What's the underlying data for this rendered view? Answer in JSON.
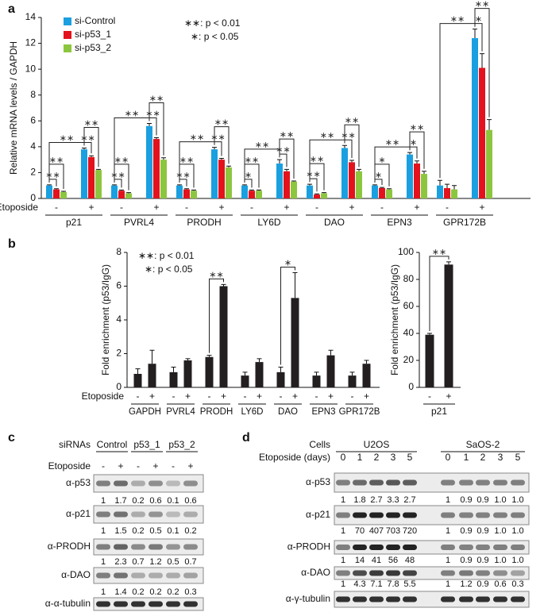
{
  "chart_data": [
    {
      "type": "bar",
      "panel_label": "a",
      "y_label": "Relative mRNA levels / GAPDH",
      "category_label": "Etoposide",
      "groups": [
        "p21",
        "PVRL4",
        "PRODH",
        "LY6D",
        "DAO",
        "EPN3",
        "GPR172B"
      ],
      "categories": [
        "-",
        "+",
        "-",
        "+",
        "-",
        "+",
        "-",
        "+",
        "-",
        "+",
        "-",
        "+",
        "-",
        "+"
      ],
      "series": [
        {
          "name": "si-Control",
          "color": "#1aa0e0",
          "values": [
            1.0,
            3.8,
            1.0,
            5.6,
            1.0,
            3.8,
            1.0,
            2.7,
            1.0,
            3.9,
            1.0,
            3.4,
            1.0,
            12.4
          ],
          "errors": [
            0.05,
            0.1,
            0.05,
            0.2,
            0.05,
            0.15,
            0.05,
            0.3,
            0.1,
            0.2,
            0.05,
            0.15,
            0.4,
            0.7
          ]
        },
        {
          "name": "si-p53_1",
          "color": "#e3121c",
          "values": [
            0.7,
            3.2,
            0.6,
            4.6,
            0.7,
            3.0,
            0.6,
            2.1,
            0.3,
            2.8,
            0.8,
            2.7,
            0.8,
            10.1
          ],
          "errors": [
            0.05,
            0.1,
            0.05,
            0.1,
            0.05,
            0.1,
            0.05,
            0.15,
            0.05,
            0.15,
            0.05,
            0.2,
            0.3,
            1.1
          ]
        },
        {
          "name": "si-p53_2",
          "color": "#8cc63e",
          "values": [
            0.5,
            2.2,
            0.4,
            3.0,
            0.6,
            2.4,
            0.6,
            1.3,
            0.4,
            2.1,
            0.7,
            1.9,
            0.7,
            5.3
          ],
          "errors": [
            0.05,
            0.05,
            0.05,
            0.15,
            0.05,
            0.1,
            0.05,
            0.05,
            0.05,
            0.15,
            0.05,
            0.2,
            0.3,
            0.8
          ]
        }
      ],
      "ylim": [
        0,
        14
      ],
      "yticks": [
        0,
        2,
        4,
        6,
        8,
        10,
        12,
        14
      ],
      "legend_position": "upper left",
      "significance_key": [
        "∗∗: p < 0.01",
        "∗: p < 0.05"
      ],
      "brackets": [
        {
          "label": "∗∗",
          "from": [
            0,
            0
          ],
          "to": [
            1,
            0
          ]
        },
        {
          "label": "∗∗",
          "from": [
            0,
            0
          ],
          "to": [
            2,
            0
          ]
        },
        {
          "label": "∗∗",
          "from": [
            0,
            0
          ],
          "to": [
            0,
            1
          ]
        },
        {
          "label": "∗∗",
          "from": [
            0,
            1
          ],
          "to": [
            1,
            1
          ]
        },
        {
          "label": "∗∗",
          "from": [
            0,
            1
          ],
          "to": [
            2,
            1
          ]
        },
        {
          "label": "∗∗",
          "from": [
            0,
            2
          ],
          "to": [
            1,
            2
          ]
        },
        {
          "label": "∗∗",
          "from": [
            0,
            2
          ],
          "to": [
            2,
            2
          ]
        },
        {
          "label": "∗∗",
          "from": [
            0,
            2
          ],
          "to": [
            0,
            3
          ]
        },
        {
          "label": "∗∗",
          "from": [
            0,
            3
          ],
          "to": [
            1,
            3
          ]
        },
        {
          "label": "∗∗",
          "from": [
            0,
            3
          ],
          "to": [
            2,
            3
          ]
        },
        {
          "label": "∗∗",
          "from": [
            0,
            4
          ],
          "to": [
            1,
            4
          ]
        },
        {
          "label": "∗∗",
          "from": [
            0,
            4
          ],
          "to": [
            2,
            4
          ]
        },
        {
          "label": "∗∗",
          "from": [
            0,
            4
          ],
          "to": [
            0,
            5
          ]
        },
        {
          "label": "∗∗",
          "from": [
            0,
            5
          ],
          "to": [
            1,
            5
          ]
        },
        {
          "label": "∗∗",
          "from": [
            0,
            5
          ],
          "to": [
            2,
            5
          ]
        },
        {
          "label": "∗",
          "from": [
            0,
            6
          ],
          "to": [
            1,
            6
          ]
        },
        {
          "label": "∗∗",
          "from": [
            0,
            6
          ],
          "to": [
            2,
            6
          ]
        },
        {
          "label": "∗∗",
          "from": [
            0,
            6
          ],
          "to": [
            0,
            7
          ]
        },
        {
          "label": "∗∗",
          "from": [
            0,
            7
          ],
          "to": [
            1,
            7
          ]
        },
        {
          "label": "∗∗",
          "from": [
            0,
            7
          ],
          "to": [
            2,
            7
          ]
        },
        {
          "label": "∗∗",
          "from": [
            0,
            8
          ],
          "to": [
            1,
            8
          ]
        },
        {
          "label": "∗∗",
          "from": [
            0,
            8
          ],
          "to": [
            2,
            8
          ]
        },
        {
          "label": "∗∗",
          "from": [
            0,
            8
          ],
          "to": [
            0,
            9
          ]
        },
        {
          "label": "∗∗",
          "from": [
            0,
            9
          ],
          "to": [
            1,
            9
          ]
        },
        {
          "label": "∗∗",
          "from": [
            0,
            9
          ],
          "to": [
            2,
            9
          ]
        },
        {
          "label": "∗",
          "from": [
            0,
            10
          ],
          "to": [
            1,
            10
          ]
        },
        {
          "label": "∗",
          "from": [
            0,
            10
          ],
          "to": [
            2,
            10
          ]
        },
        {
          "label": "∗∗",
          "from": [
            0,
            10
          ],
          "to": [
            0,
            11
          ]
        },
        {
          "label": "∗",
          "from": [
            0,
            11
          ],
          "to": [
            1,
            11
          ]
        },
        {
          "label": "∗∗",
          "from": [
            0,
            11
          ],
          "to": [
            2,
            11
          ]
        },
        {
          "label": "∗∗",
          "from": [
            0,
            12
          ],
          "to": [
            0,
            13
          ]
        },
        {
          "label": "∗",
          "from": [
            0,
            13
          ],
          "to": [
            1,
            13
          ]
        },
        {
          "label": "∗∗",
          "from": [
            0,
            13
          ],
          "to": [
            2,
            13
          ]
        }
      ]
    },
    {
      "type": "bar",
      "panel_label": "b",
      "y_label": "Fold enrichment (p53/IgG)",
      "category_label": "Etoposide",
      "groups": [
        "GAPDH",
        "PVRL4",
        "PRODH",
        "LY6D",
        "DAO",
        "EPN3",
        "GPR172B"
      ],
      "categories": [
        "-",
        "+",
        "-",
        "+",
        "-",
        "+",
        "-",
        "+",
        "-",
        "+",
        "-",
        "+",
        "-",
        "+"
      ],
      "values": [
        0.8,
        1.4,
        0.9,
        1.6,
        1.8,
        6.0,
        0.7,
        1.5,
        0.9,
        5.3,
        0.7,
        1.9,
        0.7,
        1.4
      ],
      "errors": [
        0.3,
        0.8,
        0.3,
        0.1,
        0.1,
        0.1,
        0.2,
        0.2,
        0.3,
        1.5,
        0.2,
        0.3,
        0.2,
        0.2
      ],
      "color": "#231f20",
      "ylim": [
        0,
        8
      ],
      "yticks": [
        0,
        2,
        4,
        6,
        8
      ],
      "significance_key": [
        "∗∗: p < 0.01",
        "∗: p < 0.05"
      ],
      "brackets": [
        {
          "label": "∗∗",
          "from": 4,
          "to": 5
        },
        {
          "label": "∗",
          "from": 8,
          "to": 9
        }
      ]
    },
    {
      "type": "bar",
      "y_label": "Fold enrichment (p53/IgG)",
      "groups": [
        "p21"
      ],
      "categories": [
        "-",
        "+"
      ],
      "values": [
        39,
        91
      ],
      "errors": [
        1,
        2
      ],
      "color": "#231f20",
      "ylim": [
        0,
        100
      ],
      "yticks": [
        0,
        20,
        40,
        60,
        80,
        100
      ],
      "brackets": [
        {
          "label": "∗∗",
          "from": 0,
          "to": 1
        }
      ]
    }
  ],
  "blots": [
    {
      "panel_label": "c",
      "header_label": "siRNAs",
      "groups": [
        "Control",
        "p53_1",
        "p53_2"
      ],
      "treatment_label": "Etoposide",
      "treatments": [
        "-",
        "+",
        "-",
        "+",
        "-",
        "+"
      ],
      "rows": [
        {
          "antibody": "α-p53",
          "quantification": [
            "1",
            "1.7",
            "0.2",
            "0.6",
            "0.1",
            "0.6"
          ]
        },
        {
          "antibody": "α-p21",
          "quantification": [
            "1",
            "1.5",
            "0.2",
            "0.5",
            "0.1",
            "0.2"
          ]
        },
        {
          "antibody": "α-PRODH",
          "quantification": [
            "1",
            "2.3",
            "0.7",
            "1.2",
            "0.5",
            "0.7"
          ]
        },
        {
          "antibody": "α-DAO",
          "quantification": [
            "1",
            "1.4",
            "0.2",
            "0.2",
            "0.2",
            "0.3"
          ]
        },
        {
          "antibody": "α-α-tubulin"
        }
      ]
    },
    {
      "panel_label": "d",
      "header_label": "Cells",
      "groups": [
        "U2OS",
        "SaOS-2"
      ],
      "treatment_label": "Etoposide (days)",
      "treatments": [
        "0",
        "1",
        "2",
        "3",
        "5",
        "0",
        "1",
        "2",
        "3",
        "5"
      ],
      "rows": [
        {
          "antibody": "α-p53",
          "quantification": [
            "1",
            "1.8",
            "2.7",
            "3.3",
            "2.7",
            "1",
            "0.9",
            "0.9",
            "1.0",
            "1.0"
          ]
        },
        {
          "antibody": "α-p21",
          "quantification": [
            "1",
            "70",
            "407",
            "703",
            "720",
            "1",
            "0.9",
            "0.9",
            "1.0",
            "1.0"
          ]
        },
        {
          "antibody": "α-PRODH",
          "quantification": [
            "1",
            "14",
            "41",
            "56",
            "48",
            "1",
            "0.9",
            "0.9",
            "1.0",
            "1.0"
          ]
        },
        {
          "antibody": "α-DAO",
          "quantification": [
            "1",
            "4.3",
            "7.1",
            "7.8",
            "5.5",
            "1",
            "1.2",
            "0.9",
            "0.6",
            "0.3"
          ]
        },
        {
          "antibody": "α-γ-tubulin"
        }
      ]
    }
  ]
}
